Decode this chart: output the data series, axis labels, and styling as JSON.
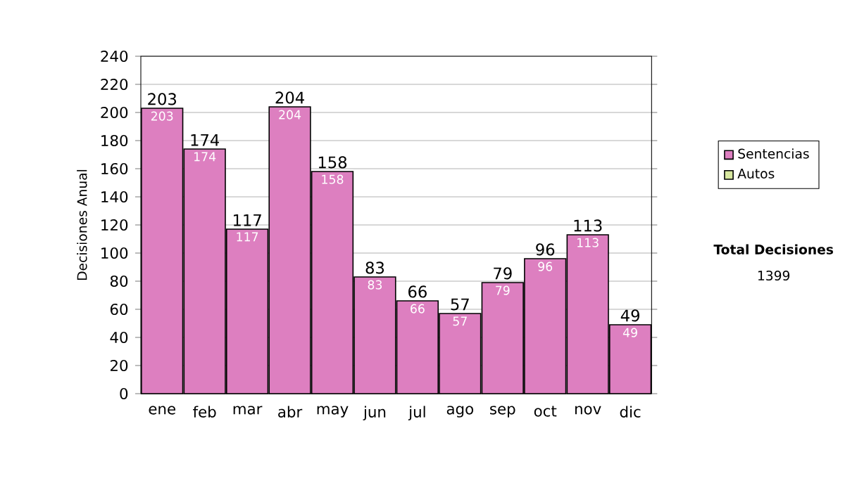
{
  "chart_data": {
    "type": "bar",
    "stacked": true,
    "ylabel": "Decisiones Anual",
    "categories": [
      "ene",
      "feb",
      "mar",
      "abr",
      "may",
      "jun",
      "jul",
      "ago",
      "sep",
      "oct",
      "nov",
      "dic"
    ],
    "series": [
      {
        "name": "Sentencias",
        "color": "#dd7fc0",
        "values": [
          203,
          174,
          117,
          204,
          158,
          83,
          66,
          57,
          79,
          96,
          113,
          49
        ],
        "value_labels": [
          "203",
          "174",
          "117",
          "204",
          "158",
          "83",
          "66",
          "57",
          "79",
          "96",
          "113",
          "49"
        ]
      },
      {
        "name": "Autos",
        "color": "#d8e8a0",
        "values": [
          0,
          0,
          0,
          0,
          0,
          0,
          0,
          0,
          0,
          0,
          0,
          0
        ]
      }
    ],
    "totals": [
      "203",
      "174",
      "117",
      "204",
      "158",
      "83",
      "66",
      "57",
      "79",
      "96",
      "113",
      "49"
    ],
    "ylim": [
      0,
      240
    ],
    "yticks": [
      0,
      20,
      40,
      60,
      80,
      100,
      120,
      140,
      160,
      180,
      200,
      220,
      240
    ],
    "grid": "y",
    "legend": "right",
    "annotations": [
      "Total Decisiones",
      "1399"
    ]
  }
}
